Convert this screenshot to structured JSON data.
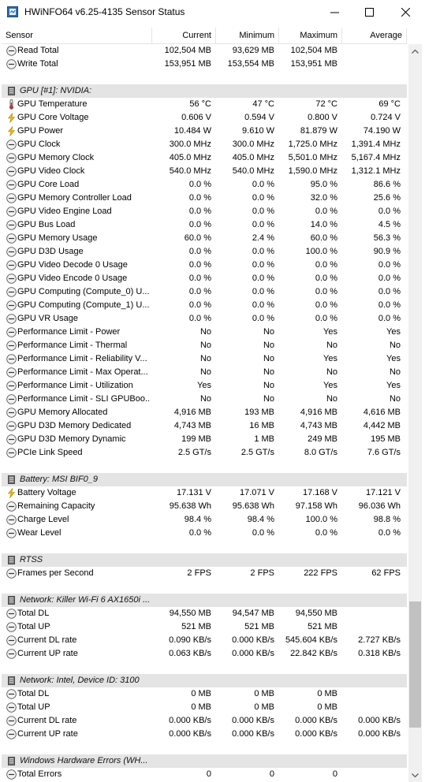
{
  "window": {
    "title": "HWiNFO64 v6.25-4135 Sensor Status"
  },
  "columns": {
    "sensor": "Sensor",
    "current": "Current",
    "minimum": "Minimum",
    "maximum": "Maximum",
    "average": "Average"
  },
  "scroll_fraction": 0.93,
  "rows": [
    {
      "kind": "sensor",
      "icon": "clock",
      "name": "Read Total",
      "cur": "102,504 MB",
      "min": "93,629 MB",
      "max": "102,504 MB",
      "avg": ""
    },
    {
      "kind": "sensor",
      "icon": "clock",
      "name": "Write Total",
      "cur": "153,951 MB",
      "min": "153,554 MB",
      "max": "153,951 MB",
      "avg": ""
    },
    {
      "kind": "blank"
    },
    {
      "kind": "group",
      "name": "GPU [#1]: NVIDIA:"
    },
    {
      "kind": "sensor",
      "icon": "temp",
      "name": "GPU Temperature",
      "cur": "56 °C",
      "min": "47 °C",
      "max": "72 °C",
      "avg": "69 °C"
    },
    {
      "kind": "sensor",
      "icon": "bolt",
      "name": "GPU Core Voltage",
      "cur": "0.606 V",
      "min": "0.594 V",
      "max": "0.800 V",
      "avg": "0.724 V"
    },
    {
      "kind": "sensor",
      "icon": "bolt",
      "name": "GPU Power",
      "cur": "10.484 W",
      "min": "9.610 W",
      "max": "81.879 W",
      "avg": "74.190 W"
    },
    {
      "kind": "sensor",
      "icon": "clock",
      "name": "GPU Clock",
      "cur": "300.0 MHz",
      "min": "300.0 MHz",
      "max": "1,725.0 MHz",
      "avg": "1,391.4 MHz"
    },
    {
      "kind": "sensor",
      "icon": "clock",
      "name": "GPU Memory Clock",
      "cur": "405.0 MHz",
      "min": "405.0 MHz",
      "max": "5,501.0 MHz",
      "avg": "5,167.4 MHz"
    },
    {
      "kind": "sensor",
      "icon": "clock",
      "name": "GPU Video Clock",
      "cur": "540.0 MHz",
      "min": "540.0 MHz",
      "max": "1,590.0 MHz",
      "avg": "1,312.1 MHz"
    },
    {
      "kind": "sensor",
      "icon": "clock",
      "name": "GPU Core Load",
      "cur": "0.0 %",
      "min": "0.0 %",
      "max": "95.0 %",
      "avg": "86.6 %"
    },
    {
      "kind": "sensor",
      "icon": "clock",
      "name": "GPU Memory Controller Load",
      "cur": "0.0 %",
      "min": "0.0 %",
      "max": "32.0 %",
      "avg": "25.6 %"
    },
    {
      "kind": "sensor",
      "icon": "clock",
      "name": "GPU Video Engine Load",
      "cur": "0.0 %",
      "min": "0.0 %",
      "max": "0.0 %",
      "avg": "0.0 %"
    },
    {
      "kind": "sensor",
      "icon": "clock",
      "name": "GPU Bus Load",
      "cur": "0.0 %",
      "min": "0.0 %",
      "max": "14.0 %",
      "avg": "4.5 %"
    },
    {
      "kind": "sensor",
      "icon": "clock",
      "name": "GPU Memory Usage",
      "cur": "60.0 %",
      "min": "2.4 %",
      "max": "60.0 %",
      "avg": "56.3 %"
    },
    {
      "kind": "sensor",
      "icon": "clock",
      "name": "GPU D3D Usage",
      "cur": "0.0 %",
      "min": "0.0 %",
      "max": "100.0 %",
      "avg": "90.9 %"
    },
    {
      "kind": "sensor",
      "icon": "clock",
      "name": "GPU Video Decode 0 Usage",
      "cur": "0.0 %",
      "min": "0.0 %",
      "max": "0.0 %",
      "avg": "0.0 %"
    },
    {
      "kind": "sensor",
      "icon": "clock",
      "name": "GPU Video Encode 0 Usage",
      "cur": "0.0 %",
      "min": "0.0 %",
      "max": "0.0 %",
      "avg": "0.0 %"
    },
    {
      "kind": "sensor",
      "icon": "clock",
      "name": "GPU Computing (Compute_0) U...",
      "cur": "0.0 %",
      "min": "0.0 %",
      "max": "0.0 %",
      "avg": "0.0 %"
    },
    {
      "kind": "sensor",
      "icon": "clock",
      "name": "GPU Computing (Compute_1) U...",
      "cur": "0.0 %",
      "min": "0.0 %",
      "max": "0.0 %",
      "avg": "0.0 %"
    },
    {
      "kind": "sensor",
      "icon": "clock",
      "name": "GPU VR Usage",
      "cur": "0.0 %",
      "min": "0.0 %",
      "max": "0.0 %",
      "avg": "0.0 %"
    },
    {
      "kind": "sensor",
      "icon": "clock",
      "name": "Performance Limit - Power",
      "cur": "No",
      "min": "No",
      "max": "Yes",
      "avg": "Yes"
    },
    {
      "kind": "sensor",
      "icon": "clock",
      "name": "Performance Limit - Thermal",
      "cur": "No",
      "min": "No",
      "max": "No",
      "avg": "No"
    },
    {
      "kind": "sensor",
      "icon": "clock",
      "name": "Performance Limit - Reliability V...",
      "cur": "No",
      "min": "No",
      "max": "Yes",
      "avg": "Yes"
    },
    {
      "kind": "sensor",
      "icon": "clock",
      "name": "Performance Limit - Max Operat...",
      "cur": "No",
      "min": "No",
      "max": "No",
      "avg": "No"
    },
    {
      "kind": "sensor",
      "icon": "clock",
      "name": "Performance Limit - Utilization",
      "cur": "Yes",
      "min": "No",
      "max": "Yes",
      "avg": "Yes"
    },
    {
      "kind": "sensor",
      "icon": "clock",
      "name": "Performance Limit - SLI GPUBoo...",
      "cur": "No",
      "min": "No",
      "max": "No",
      "avg": "No"
    },
    {
      "kind": "sensor",
      "icon": "clock",
      "name": "GPU Memory Allocated",
      "cur": "4,916 MB",
      "min": "193 MB",
      "max": "4,916 MB",
      "avg": "4,616 MB"
    },
    {
      "kind": "sensor",
      "icon": "clock",
      "name": "GPU D3D Memory Dedicated",
      "cur": "4,743 MB",
      "min": "16 MB",
      "max": "4,743 MB",
      "avg": "4,442 MB"
    },
    {
      "kind": "sensor",
      "icon": "clock",
      "name": "GPU D3D Memory Dynamic",
      "cur": "199 MB",
      "min": "1 MB",
      "max": "249 MB",
      "avg": "195 MB"
    },
    {
      "kind": "sensor",
      "icon": "clock",
      "name": "PCIe Link Speed",
      "cur": "2.5 GT/s",
      "min": "2.5 GT/s",
      "max": "8.0 GT/s",
      "avg": "7.6 GT/s"
    },
    {
      "kind": "blank"
    },
    {
      "kind": "group",
      "name": "Battery: MSI BIF0_9"
    },
    {
      "kind": "sensor",
      "icon": "bolt",
      "name": "Battery Voltage",
      "cur": "17.131 V",
      "min": "17.071 V",
      "max": "17.168 V",
      "avg": "17.121 V"
    },
    {
      "kind": "sensor",
      "icon": "clock",
      "name": "Remaining Capacity",
      "cur": "95.638 Wh",
      "min": "95.638 Wh",
      "max": "97.158 Wh",
      "avg": "96.036 Wh"
    },
    {
      "kind": "sensor",
      "icon": "clock",
      "name": "Charge Level",
      "cur": "98.4 %",
      "min": "98.4 %",
      "max": "100.0 %",
      "avg": "98.8 %"
    },
    {
      "kind": "sensor",
      "icon": "clock",
      "name": "Wear Level",
      "cur": "0.0 %",
      "min": "0.0 %",
      "max": "0.0 %",
      "avg": "0.0 %"
    },
    {
      "kind": "blank"
    },
    {
      "kind": "group",
      "name": "RTSS"
    },
    {
      "kind": "sensor",
      "icon": "clock",
      "name": "Frames per Second",
      "cur": "2 FPS",
      "min": "2 FPS",
      "max": "222 FPS",
      "avg": "62 FPS"
    },
    {
      "kind": "blank"
    },
    {
      "kind": "group",
      "name": "Network: Killer Wi-Fi 6 AX1650i ..."
    },
    {
      "kind": "sensor",
      "icon": "clock",
      "name": "Total DL",
      "cur": "94,550 MB",
      "min": "94,547 MB",
      "max": "94,550 MB",
      "avg": ""
    },
    {
      "kind": "sensor",
      "icon": "clock",
      "name": "Total UP",
      "cur": "521 MB",
      "min": "521 MB",
      "max": "521 MB",
      "avg": ""
    },
    {
      "kind": "sensor",
      "icon": "clock",
      "name": "Current DL rate",
      "cur": "0.090 KB/s",
      "min": "0.000 KB/s",
      "max": "545.604 KB/s",
      "avg": "2.727 KB/s"
    },
    {
      "kind": "sensor",
      "icon": "clock",
      "name": "Current UP rate",
      "cur": "0.063 KB/s",
      "min": "0.000 KB/s",
      "max": "22.842 KB/s",
      "avg": "0.318 KB/s"
    },
    {
      "kind": "blank"
    },
    {
      "kind": "group",
      "name": "Network: Intel, Device ID: 3100"
    },
    {
      "kind": "sensor",
      "icon": "clock",
      "name": "Total DL",
      "cur": "0 MB",
      "min": "0 MB",
      "max": "0 MB",
      "avg": ""
    },
    {
      "kind": "sensor",
      "icon": "clock",
      "name": "Total UP",
      "cur": "0 MB",
      "min": "0 MB",
      "max": "0 MB",
      "avg": ""
    },
    {
      "kind": "sensor",
      "icon": "clock",
      "name": "Current DL rate",
      "cur": "0.000 KB/s",
      "min": "0.000 KB/s",
      "max": "0.000 KB/s",
      "avg": "0.000 KB/s"
    },
    {
      "kind": "sensor",
      "icon": "clock",
      "name": "Current UP rate",
      "cur": "0.000 KB/s",
      "min": "0.000 KB/s",
      "max": "0.000 KB/s",
      "avg": "0.000 KB/s"
    },
    {
      "kind": "blank"
    },
    {
      "kind": "group",
      "name": "Windows Hardware Errors (WH..."
    },
    {
      "kind": "sensor",
      "icon": "clock",
      "name": "Total Errors",
      "cur": "0",
      "min": "0",
      "max": "0",
      "avg": ""
    }
  ]
}
